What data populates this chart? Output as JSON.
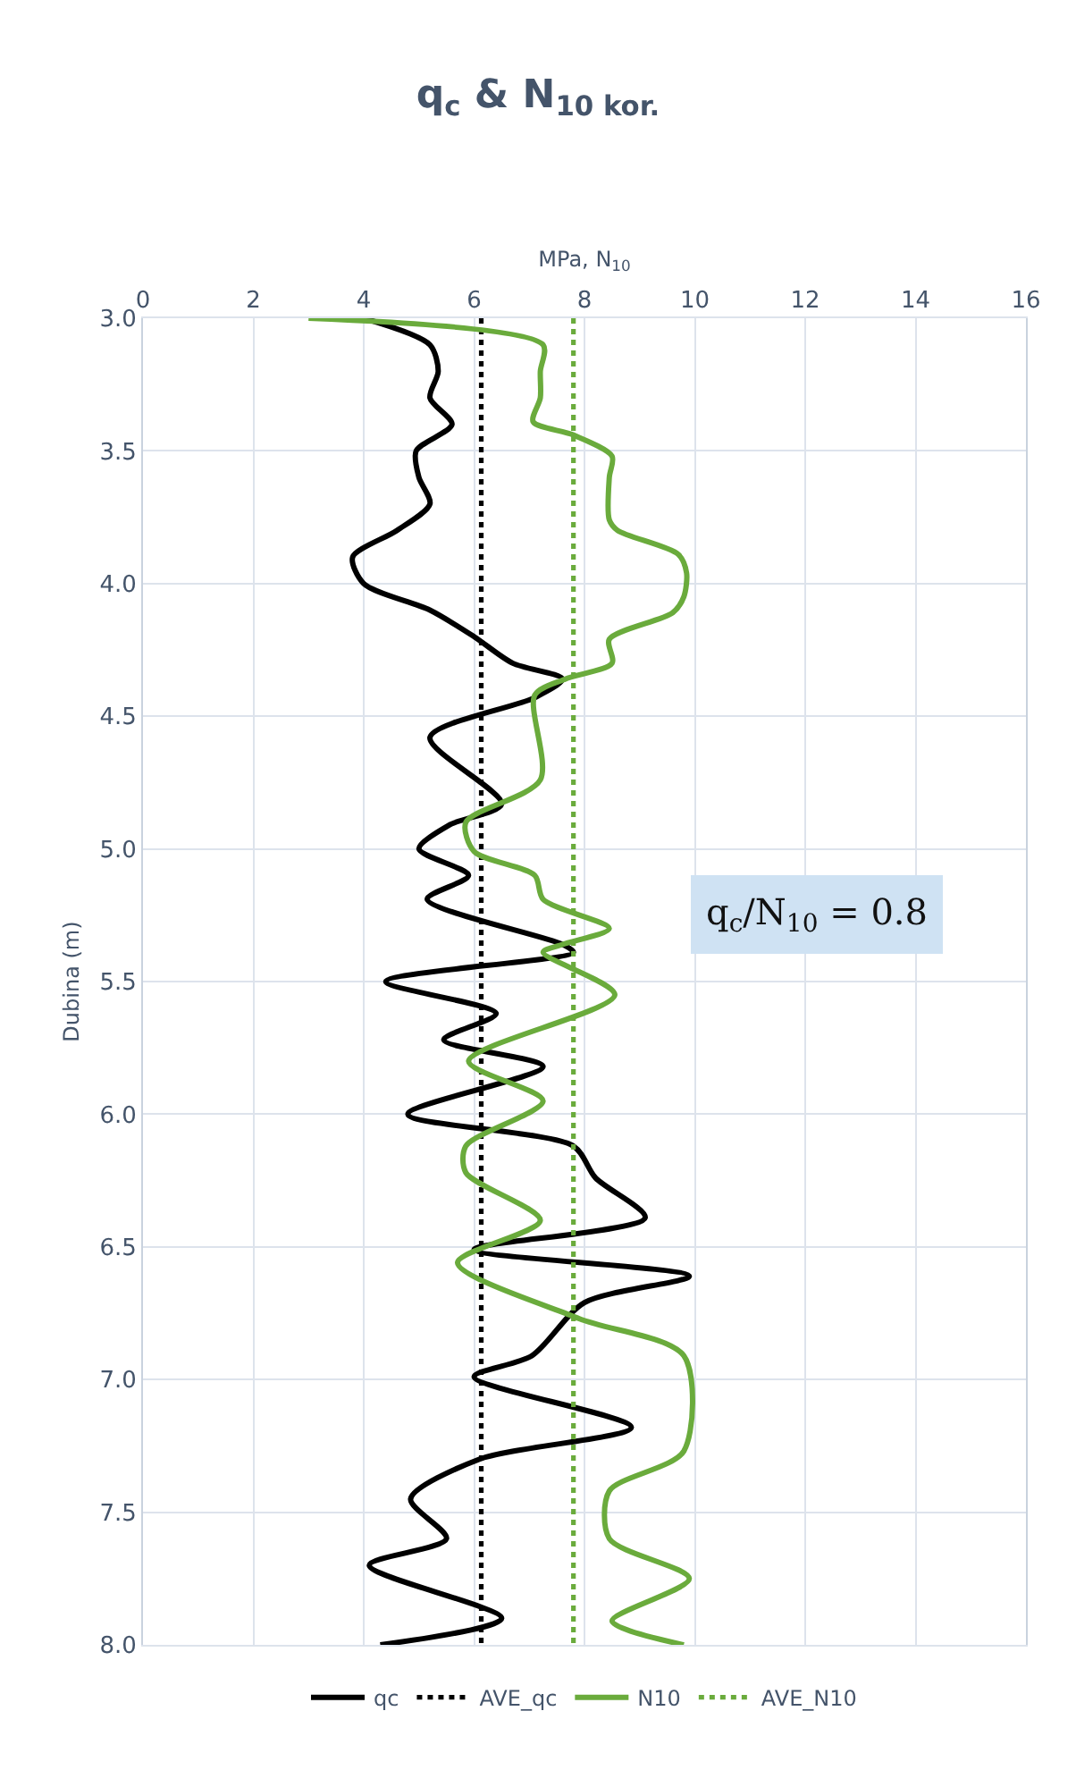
{
  "chart_data": {
    "type": "line",
    "title": "q$_{c}$ & N$_{10 kor.}$",
    "xlabel": "MPa, N$_{10}$",
    "ylabel": "Dubina (m)",
    "xlim": [
      0,
      16
    ],
    "xticks": [
      0,
      2,
      4,
      6,
      8,
      10,
      12,
      14,
      16
    ],
    "ylim": [
      8.0,
      3.0
    ],
    "yticks": [
      {
        "value": 3.0,
        "label": "3.0"
      },
      {
        "value": 3.5,
        "label": "3.5"
      },
      {
        "value": 4.0,
        "label": "4.0"
      },
      {
        "value": 4.5,
        "label": "4.5"
      },
      {
        "value": 5.0,
        "label": "5.0"
      },
      {
        "value": 5.5,
        "label": "5.5"
      },
      {
        "value": 6.0,
        "label": "6.0"
      },
      {
        "value": 6.5,
        "label": "6.5"
      },
      {
        "value": 7.0,
        "label": "7.0"
      },
      {
        "value": 7.5,
        "label": "7.5"
      },
      {
        "value": 8.0,
        "label": "8.0"
      }
    ],
    "grid": true,
    "legend": "bottom",
    "marker": "none",
    "annotations": [
      "q$_{c}$/N$_{10}$ = 0.8"
    ],
    "series": [
      {
        "name": "qc",
        "color": "#000000",
        "line_style": "solid",
        "x": [
          4.0,
          5.2,
          5.35,
          5.2,
          5.6,
          4.95,
          5.0,
          5.2,
          4.6,
          3.8,
          4.0,
          5.2,
          6.0,
          6.7,
          7.6,
          7.1,
          5.2,
          6.5,
          5.55,
          5.0,
          5.9,
          5.15,
          7.6,
          7.8,
          4.4,
          6.4,
          5.45,
          7.25,
          4.8,
          7.8,
          8.2,
          9.1,
          6.0,
          9.9,
          8.0,
          7.05,
          6.0,
          8.85,
          6.1,
          4.85,
          5.5,
          4.1,
          6.5,
          4.3
        ],
        "values": [
          3.0,
          3.1,
          3.2,
          3.3,
          3.4,
          3.5,
          3.6,
          3.7,
          3.8,
          3.9,
          4.0,
          4.1,
          4.2,
          4.3,
          4.36,
          4.43,
          4.58,
          4.83,
          4.91,
          5.0,
          5.1,
          5.19,
          5.36,
          5.39,
          5.5,
          5.62,
          5.72,
          5.82,
          6.0,
          6.12,
          6.24,
          6.39,
          6.51,
          6.61,
          6.71,
          6.91,
          6.99,
          7.18,
          7.3,
          7.45,
          7.6,
          7.7,
          7.9,
          8.0
        ]
      },
      {
        "name": "AVE_qc",
        "color": "#000000",
        "line_style": "dotted",
        "x": [
          6.13,
          6.13
        ],
        "values": [
          3.0,
          8.0
        ]
      },
      {
        "name": "N10",
        "color": "#6aab3c",
        "line_style": "solid",
        "x": [
          3.0,
          7.25,
          7.2,
          7.2,
          7.07,
          7.8,
          8.5,
          8.45,
          8.45,
          8.6,
          9.7,
          9.85,
          9.8,
          9.6,
          8.45,
          8.5,
          7.65,
          7.1,
          7.2,
          5.85,
          6.0,
          7.1,
          7.25,
          8.45,
          7.6,
          7.25,
          8.55,
          5.9,
          7.25,
          5.85,
          5.85,
          7.2,
          5.7,
          7.9,
          9.8,
          9.8,
          8.45,
          8.45,
          9.9,
          8.5,
          9.8
        ],
        "values": [
          3.0,
          3.1,
          3.2,
          3.3,
          3.39,
          3.44,
          3.52,
          3.6,
          3.76,
          3.8,
          3.89,
          3.96,
          4.05,
          4.11,
          4.21,
          4.3,
          4.36,
          4.42,
          4.74,
          4.9,
          5.01,
          5.1,
          5.19,
          5.3,
          5.36,
          5.39,
          5.55,
          5.8,
          5.95,
          6.12,
          6.22,
          6.4,
          6.56,
          6.77,
          6.91,
          7.27,
          7.42,
          7.6,
          7.75,
          7.91,
          8.0
        ]
      },
      {
        "name": "AVE_N10",
        "color": "#6aab3c",
        "line_style": "dotted",
        "x": [
          7.8,
          7.8
        ],
        "values": [
          3.0,
          8.0
        ]
      }
    ]
  }
}
